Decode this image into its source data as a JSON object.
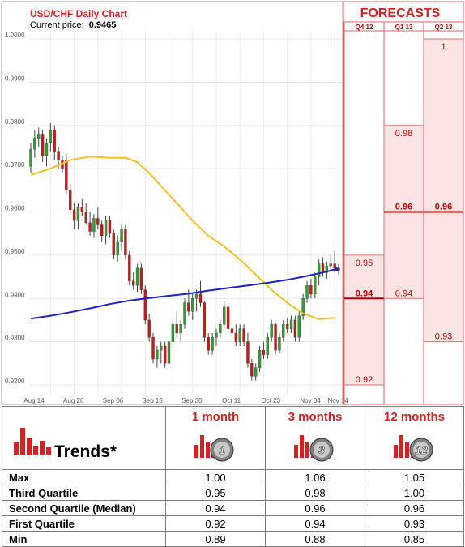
{
  "header": {
    "title": "USD/CHF Daily Chart",
    "price_label": "Current price:",
    "price_value": "0.9465"
  },
  "chart_data": {
    "type": "candlestick",
    "y_ticks": [
      "1.0000",
      "0.9900",
      "0.9800",
      "0.9700",
      "0.9600",
      "0.9500",
      "0.9400",
      "0.9300",
      "0.9200"
    ],
    "ylim": [
      0.9185,
      1.0035
    ],
    "x_ticks": [
      "Aug 14",
      "Aug 26",
      "Sep 06",
      "Sep 18",
      "Sep 30",
      "Oct 11",
      "Oct 23",
      "Nov 04",
      "Nov 14"
    ],
    "candles": [
      [
        0.9705,
        0.976,
        0.969,
        0.9745
      ],
      [
        0.9745,
        0.979,
        0.9725,
        0.977
      ],
      [
        0.977,
        0.9795,
        0.975,
        0.978
      ],
      [
        0.978,
        0.979,
        0.9715,
        0.973
      ],
      [
        0.973,
        0.977,
        0.9705,
        0.976
      ],
      [
        0.976,
        0.9805,
        0.974,
        0.979
      ],
      [
        0.979,
        0.98,
        0.972,
        0.974
      ],
      [
        0.974,
        0.975,
        0.97,
        0.972
      ],
      [
        0.972,
        0.973,
        0.969,
        0.97
      ],
      [
        0.972,
        0.9735,
        0.964,
        0.965
      ],
      [
        0.965,
        0.9665,
        0.9595,
        0.9605
      ],
      [
        0.9605,
        0.962,
        0.956,
        0.958
      ],
      [
        0.958,
        0.962,
        0.956,
        0.961
      ],
      [
        0.961,
        0.963,
        0.959,
        0.96
      ],
      [
        0.96,
        0.962,
        0.957,
        0.9575
      ],
      [
        0.9575,
        0.96,
        0.9545,
        0.9555
      ],
      [
        0.9555,
        0.9595,
        0.954,
        0.9585
      ],
      [
        0.9585,
        0.961,
        0.956,
        0.957
      ],
      [
        0.957,
        0.958,
        0.953,
        0.9545
      ],
      [
        0.9545,
        0.959,
        0.9525,
        0.958
      ],
      [
        0.958,
        0.959,
        0.954,
        0.955
      ],
      [
        0.955,
        0.956,
        0.949,
        0.95
      ],
      [
        0.95,
        0.9545,
        0.9485,
        0.953
      ],
      [
        0.953,
        0.957,
        0.951,
        0.956
      ],
      [
        0.956,
        0.957,
        0.949,
        0.95
      ],
      [
        0.95,
        0.951,
        0.943,
        0.944
      ],
      [
        0.944,
        0.946,
        0.942,
        0.943
      ],
      [
        0.943,
        0.948,
        0.9415,
        0.947
      ],
      [
        0.947,
        0.948,
        0.941,
        0.942
      ],
      [
        0.942,
        0.943,
        0.934,
        0.935
      ],
      [
        0.935,
        0.9365,
        0.93,
        0.931
      ],
      [
        0.931,
        0.932,
        0.925,
        0.926
      ],
      [
        0.926,
        0.929,
        0.924,
        0.928
      ],
      [
        0.928,
        0.93,
        0.925,
        0.929
      ],
      [
        0.929,
        0.93,
        0.924,
        0.925
      ],
      [
        0.925,
        0.931,
        0.924,
        0.93
      ],
      [
        0.93,
        0.935,
        0.929,
        0.934
      ],
      [
        0.934,
        0.937,
        0.931,
        0.932
      ],
      [
        0.932,
        0.935,
        0.93,
        0.934
      ],
      [
        0.934,
        0.94,
        0.933,
        0.939
      ],
      [
        0.939,
        0.942,
        0.936,
        0.937
      ],
      [
        0.937,
        0.941,
        0.935,
        0.94
      ],
      [
        0.94,
        0.942,
        0.937,
        0.941
      ],
      [
        0.941,
        0.944,
        0.938,
        0.939
      ],
      [
        0.939,
        0.9395,
        0.93,
        0.931
      ],
      [
        0.931,
        0.932,
        0.927,
        0.928
      ],
      [
        0.928,
        0.932,
        0.927,
        0.931
      ],
      [
        0.931,
        0.933,
        0.929,
        0.932
      ],
      [
        0.932,
        0.935,
        0.931,
        0.934
      ],
      [
        0.934,
        0.9395,
        0.933,
        0.938
      ],
      [
        0.938,
        0.939,
        0.932,
        0.933
      ],
      [
        0.933,
        0.935,
        0.931,
        0.932
      ],
      [
        0.932,
        0.934,
        0.929,
        0.93
      ],
      [
        0.93,
        0.934,
        0.929,
        0.933
      ],
      [
        0.933,
        0.934,
        0.929,
        0.93
      ],
      [
        0.93,
        0.932,
        0.924,
        0.925
      ],
      [
        0.925,
        0.926,
        0.921,
        0.922
      ],
      [
        0.922,
        0.925,
        0.921,
        0.924
      ],
      [
        0.924,
        0.929,
        0.923,
        0.928
      ],
      [
        0.928,
        0.93,
        0.926,
        0.927
      ],
      [
        0.927,
        0.932,
        0.926,
        0.931
      ],
      [
        0.931,
        0.935,
        0.93,
        0.934
      ],
      [
        0.934,
        0.9345,
        0.927,
        0.928
      ],
      [
        0.928,
        0.932,
        0.9275,
        0.931
      ],
      [
        0.931,
        0.935,
        0.93,
        0.934
      ],
      [
        0.934,
        0.9355,
        0.932,
        0.933
      ],
      [
        0.933,
        0.936,
        0.932,
        0.935
      ],
      [
        0.935,
        0.936,
        0.93,
        0.931
      ],
      [
        0.931,
        0.937,
        0.93,
        0.936
      ],
      [
        0.936,
        0.941,
        0.935,
        0.94
      ],
      [
        0.94,
        0.944,
        0.939,
        0.943
      ],
      [
        0.943,
        0.9445,
        0.94,
        0.941
      ],
      [
        0.941,
        0.946,
        0.94,
        0.945
      ],
      [
        0.945,
        0.949,
        0.943,
        0.948
      ],
      [
        0.948,
        0.9495,
        0.945,
        0.946
      ],
      [
        0.946,
        0.9485,
        0.9445,
        0.9475
      ],
      [
        0.9475,
        0.95,
        0.9465,
        0.948
      ],
      [
        0.948,
        0.951,
        0.946,
        0.947
      ],
      [
        0.947,
        0.948,
        0.9455,
        0.9465
      ]
    ],
    "ma_yellow": [
      [
        0,
        0.9685
      ],
      [
        5,
        0.97
      ],
      [
        10,
        0.972
      ],
      [
        15,
        0.9728
      ],
      [
        20,
        0.9725
      ],
      [
        24,
        0.9725
      ],
      [
        27,
        0.9715
      ],
      [
        30,
        0.969
      ],
      [
        33,
        0.966
      ],
      [
        37,
        0.962
      ],
      [
        41,
        0.958
      ],
      [
        45,
        0.9545
      ],
      [
        49,
        0.952
      ],
      [
        53,
        0.949
      ],
      [
        57,
        0.9455
      ],
      [
        61,
        0.942
      ],
      [
        65,
        0.939
      ],
      [
        69,
        0.9365
      ],
      [
        73,
        0.9352
      ],
      [
        77,
        0.9355
      ]
    ],
    "ma_blue": [
      [
        0,
        0.9353
      ],
      [
        5,
        0.936
      ],
      [
        10,
        0.9368
      ],
      [
        15,
        0.9377
      ],
      [
        20,
        0.9387
      ],
      [
        25,
        0.9395
      ],
      [
        30,
        0.9401
      ],
      [
        35,
        0.9406
      ],
      [
        40,
        0.9411
      ],
      [
        45,
        0.9418
      ],
      [
        50,
        0.9424
      ],
      [
        55,
        0.943
      ],
      [
        60,
        0.9436
      ],
      [
        65,
        0.9443
      ],
      [
        70,
        0.9452
      ],
      [
        75,
        0.9462
      ],
      [
        77,
        0.9467
      ]
    ]
  },
  "forecasts": {
    "title": "FORECASTS",
    "columns": [
      "Q4 12",
      "Q1 13",
      "Q2 13"
    ],
    "ranges": [
      {
        "max": 0.95,
        "median": 0.94,
        "min": 0.92,
        "labels": {
          "max": "0.95",
          "median": "0.94",
          "min": "0.92"
        }
      },
      {
        "max": 0.98,
        "median": 0.96,
        "min": 0.94,
        "labels": {
          "max": "0.98",
          "median": "0.96",
          "min": "0.94"
        }
      },
      {
        "max": 1.0,
        "median": 0.96,
        "min": 0.93,
        "labels": {
          "max": "1",
          "median": "0.96",
          "min": "0.93"
        }
      }
    ]
  },
  "trends": {
    "label": "Trends*",
    "headers": [
      "1 month",
      "3 months",
      "12 months"
    ],
    "badges": [
      "1",
      "3",
      "12"
    ],
    "rows": [
      {
        "label": "Max",
        "values": [
          "1.00",
          "1.06",
          "1.05"
        ]
      },
      {
        "label": "Third Quartile",
        "values": [
          "0.95",
          "0.98",
          "1.00"
        ]
      },
      {
        "label": "Second Quartile (Median)",
        "values": [
          "0.94",
          "0.96",
          "0.96"
        ]
      },
      {
        "label": "First Quartile",
        "values": [
          "0.92",
          "0.94",
          "0.93"
        ]
      },
      {
        "label": "Min",
        "values": [
          "0.89",
          "0.88",
          "0.85"
        ]
      }
    ]
  },
  "colors": {
    "up": "#2fa030",
    "down": "#c81818",
    "ma_yellow": "#f4c020",
    "ma_blue": "#2020c8",
    "accent": "#d82020",
    "forecast_fill": "#fde4e4"
  },
  "icons": [
    "bar-chart-icon",
    "number-badge-icon"
  ]
}
